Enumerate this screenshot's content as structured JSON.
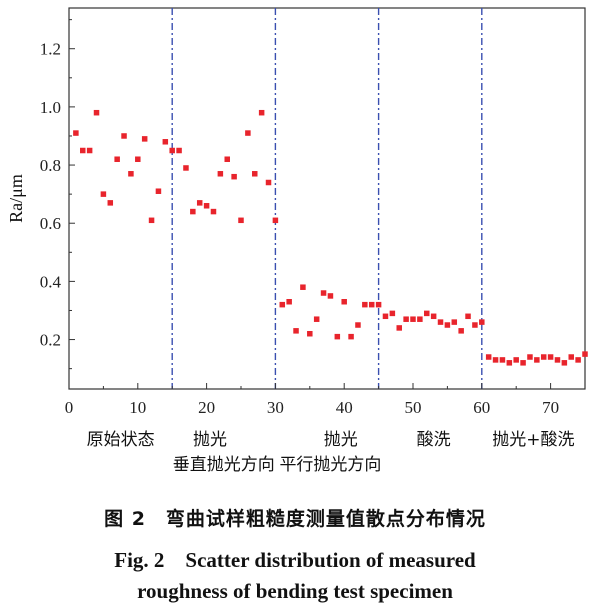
{
  "chart_data": {
    "type": "scatter",
    "title": "",
    "xlabel": "",
    "ylabel": "Ra/μm",
    "xlim": [
      0,
      75
    ],
    "ylim": [
      0.03,
      1.34
    ],
    "xticks": [
      0,
      10,
      20,
      30,
      40,
      50,
      60,
      70
    ],
    "yticks": [
      0.2,
      0.4,
      0.6,
      0.8,
      1.0,
      1.2
    ],
    "xtick_labels": [
      "0",
      "10",
      "20",
      "30",
      "40",
      "50",
      "60",
      "70"
    ],
    "ytick_labels": [
      "0.2",
      "0.4",
      "0.6",
      "0.8",
      "1.0",
      "1.2"
    ],
    "grid": false,
    "marker_color": "#e8242c",
    "divider_color": "#3a4fb0",
    "dividers": [
      15,
      30,
      45,
      60
    ],
    "region_labels": [
      {
        "text": "原始状态",
        "x": 7.5,
        "row": 1
      },
      {
        "text": "抛光",
        "x": 20.5,
        "row": 1
      },
      {
        "text": "垂直抛光方向",
        "x": 22.5,
        "row": 2
      },
      {
        "text": "抛光",
        "x": 39.5,
        "row": 1
      },
      {
        "text": "平行抛光方向",
        "x": 38,
        "row": 2
      },
      {
        "text": "酸洗",
        "x": 53,
        "row": 1
      },
      {
        "text": "抛光+酸洗",
        "x": 67.5,
        "row": 1
      }
    ],
    "series": [
      {
        "points": [
          [
            1,
            0.91
          ],
          [
            2,
            0.85
          ],
          [
            3,
            0.85
          ],
          [
            4,
            0.98
          ],
          [
            5,
            0.7
          ],
          [
            6,
            0.67
          ],
          [
            7,
            0.82
          ],
          [
            8,
            0.9
          ],
          [
            9,
            0.77
          ],
          [
            10,
            0.82
          ],
          [
            11,
            0.89
          ],
          [
            12,
            0.61
          ],
          [
            13,
            0.71
          ],
          [
            14,
            0.88
          ],
          [
            15,
            0.85
          ],
          [
            16,
            0.85
          ],
          [
            17,
            0.79
          ],
          [
            18,
            0.64
          ],
          [
            19,
            0.67
          ],
          [
            20,
            0.66
          ],
          [
            21,
            0.64
          ],
          [
            22,
            0.77
          ],
          [
            23,
            0.82
          ],
          [
            24,
            0.76
          ],
          [
            25,
            0.61
          ],
          [
            26,
            0.91
          ],
          [
            27,
            0.77
          ],
          [
            28,
            0.98
          ],
          [
            29,
            0.74
          ],
          [
            30,
            0.61
          ],
          [
            31,
            0.32
          ],
          [
            32,
            0.33
          ],
          [
            33,
            0.23
          ],
          [
            34,
            0.38
          ],
          [
            35,
            0.22
          ],
          [
            36,
            0.27
          ],
          [
            37,
            0.36
          ],
          [
            38,
            0.35
          ],
          [
            39,
            0.21
          ],
          [
            40,
            0.33
          ],
          [
            41,
            0.21
          ],
          [
            42,
            0.25
          ],
          [
            43,
            0.32
          ],
          [
            44,
            0.32
          ],
          [
            45,
            0.32
          ],
          [
            46,
            0.28
          ],
          [
            47,
            0.29
          ],
          [
            48,
            0.24
          ],
          [
            49,
            0.27
          ],
          [
            50,
            0.27
          ],
          [
            51,
            0.27
          ],
          [
            52,
            0.29
          ],
          [
            53,
            0.28
          ],
          [
            54,
            0.26
          ],
          [
            55,
            0.25
          ],
          [
            56,
            0.26
          ],
          [
            57,
            0.23
          ],
          [
            58,
            0.28
          ],
          [
            59,
            0.25
          ],
          [
            60,
            0.26
          ],
          [
            61,
            0.14
          ],
          [
            62,
            0.13
          ],
          [
            63,
            0.13
          ],
          [
            64,
            0.12
          ],
          [
            65,
            0.13
          ],
          [
            66,
            0.12
          ],
          [
            67,
            0.14
          ],
          [
            68,
            0.13
          ],
          [
            69,
            0.14
          ],
          [
            70,
            0.14
          ],
          [
            71,
            0.13
          ],
          [
            72,
            0.12
          ],
          [
            73,
            0.14
          ],
          [
            74,
            0.13
          ],
          [
            75,
            0.15
          ]
        ]
      }
    ]
  },
  "caption": {
    "cn": "图 2　弯曲试样粗糙度测量值散点分布情况",
    "en_line1": "Fig. 2　Scatter distribution of measured",
    "en_line2": "roughness of bending test specimen"
  }
}
